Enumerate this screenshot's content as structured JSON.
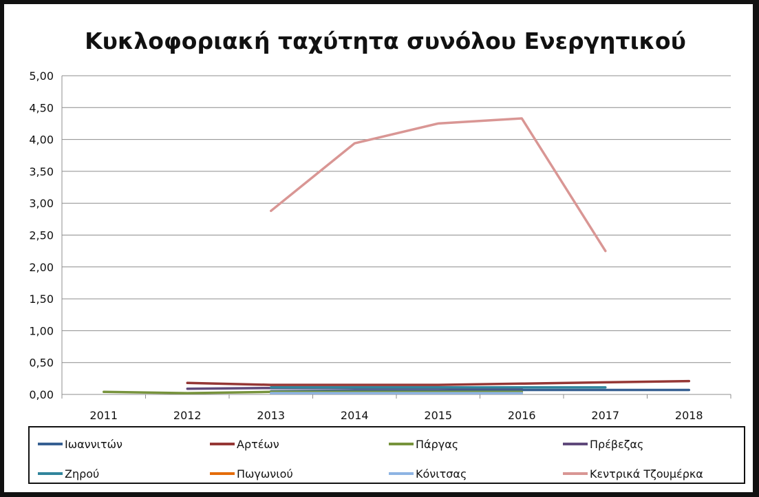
{
  "chart_data": {
    "type": "line",
    "title": "Κυκλοφοριακή ταχύτητα συνόλου Ενεργητικού",
    "categories": [
      "2011",
      "2012",
      "2013",
      "2014",
      "2015",
      "2016",
      "2017",
      "2018"
    ],
    "y_ticks": [
      "0,00",
      "0,50",
      "1,00",
      "1,50",
      "2,00",
      "2,50",
      "3,00",
      "3,50",
      "4,00",
      "4,50",
      "5,00"
    ],
    "ylim": [
      0,
      5
    ],
    "grid": true,
    "legend_position": "bottom",
    "series": [
      {
        "name": "Ιωαννιτών",
        "color": "#376092",
        "values": [
          null,
          null,
          0.05,
          0.06,
          0.06,
          0.07,
          0.07,
          0.07
        ]
      },
      {
        "name": "Αρτέων",
        "color": "#953735",
        "values": [
          null,
          0.18,
          0.15,
          0.15,
          0.15,
          0.17,
          0.19,
          0.21
        ]
      },
      {
        "name": "Πάργας",
        "color": "#77933C",
        "values": [
          0.04,
          0.02,
          0.04,
          0.04,
          0.04,
          0.04,
          null,
          null
        ]
      },
      {
        "name": "Πρέβεζας",
        "color": "#604A7B",
        "values": [
          null,
          0.09,
          0.1,
          0.1,
          0.1,
          0.1,
          null,
          null
        ]
      },
      {
        "name": "Ζηρού",
        "color": "#31859C",
        "values": [
          null,
          null,
          0.11,
          0.11,
          0.11,
          0.11,
          0.11,
          null
        ]
      },
      {
        "name": "Πωγωνιού",
        "color": "#E46C0A",
        "values": [
          null,
          null,
          null,
          null,
          null,
          null,
          null,
          null
        ]
      },
      {
        "name": "Κόνιτσας",
        "color": "#8EB4E3",
        "values": [
          null,
          null,
          0.02,
          0.02,
          0.02,
          0.02,
          null,
          null
        ]
      },
      {
        "name": "Κεντρικά Τζουμέρκα",
        "color": "#D99694",
        "values": [
          null,
          null,
          2.88,
          3.94,
          4.25,
          4.33,
          2.25,
          null
        ]
      }
    ]
  }
}
